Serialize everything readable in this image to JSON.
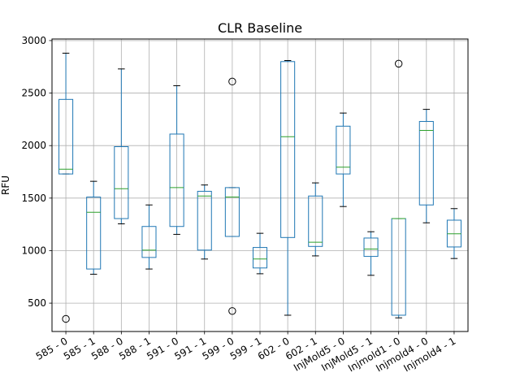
{
  "chart_data": {
    "type": "box",
    "title": "CLR Baseline",
    "xlabel": "",
    "ylabel": "RFU",
    "ylim": [
      230,
      3015
    ],
    "yticks": [
      500,
      1000,
      1500,
      2000,
      2500,
      3000
    ],
    "grid": true,
    "colors": {
      "box": "#1f77b4",
      "median": "#2ca02c",
      "whisker": "#1f77b4",
      "cap": "#000000",
      "outlier": "#000000",
      "grid": "#b0b0b0"
    },
    "categories": [
      "585 - 0",
      "585 - 1",
      "588 - 0",
      "588 - 1",
      "591 - 0",
      "591 - 1",
      "599 - 0",
      "599 - 1",
      "602 - 0",
      "602 - 1",
      "InjMold5 - 0",
      "InjMold5 - 1",
      "Injmold1 - 0",
      "Injmold4 - 0",
      "Injmold4 - 1"
    ],
    "boxes": [
      {
        "whislo": 1730,
        "q1": 1730,
        "med": 1775,
        "q3": 2440,
        "whishi": 2880,
        "fliers": [
          350
        ]
      },
      {
        "whislo": 775,
        "q1": 825,
        "med": 1365,
        "q3": 1510,
        "whishi": 1660,
        "fliers": []
      },
      {
        "whislo": 1255,
        "q1": 1305,
        "med": 1590,
        "q3": 1990,
        "whishi": 2730,
        "fliers": []
      },
      {
        "whislo": 825,
        "q1": 935,
        "med": 1005,
        "q3": 1230,
        "whishi": 1435,
        "fliers": []
      },
      {
        "whislo": 1155,
        "q1": 1230,
        "med": 1600,
        "q3": 2110,
        "whishi": 2570,
        "fliers": []
      },
      {
        "whislo": 920,
        "q1": 1005,
        "med": 1520,
        "q3": 1565,
        "whishi": 1625,
        "fliers": []
      },
      {
        "whislo": 1135,
        "q1": 1135,
        "med": 1510,
        "q3": 1600,
        "whishi": 1600,
        "fliers": [
          2610,
          425
        ]
      },
      {
        "whislo": 780,
        "q1": 835,
        "med": 920,
        "q3": 1030,
        "whishi": 1165,
        "fliers": []
      },
      {
        "whislo": 385,
        "q1": 1125,
        "med": 2085,
        "q3": 2800,
        "whishi": 2810,
        "fliers": []
      },
      {
        "whislo": 950,
        "q1": 1040,
        "med": 1080,
        "q3": 1520,
        "whishi": 1645,
        "fliers": []
      },
      {
        "whislo": 1420,
        "q1": 1730,
        "med": 1795,
        "q3": 2185,
        "whishi": 2310,
        "fliers": []
      },
      {
        "whislo": 765,
        "q1": 945,
        "med": 1015,
        "q3": 1120,
        "whishi": 1180,
        "fliers": []
      },
      {
        "whislo": 360,
        "q1": 385,
        "med": 1305,
        "q3": 1305,
        "whishi": 1305,
        "fliers": [
          2780
        ]
      },
      {
        "whislo": 1265,
        "q1": 1435,
        "med": 2145,
        "q3": 2230,
        "whishi": 2345,
        "fliers": []
      },
      {
        "whislo": 925,
        "q1": 1035,
        "med": 1160,
        "q3": 1290,
        "whishi": 1400,
        "fliers": []
      }
    ]
  }
}
